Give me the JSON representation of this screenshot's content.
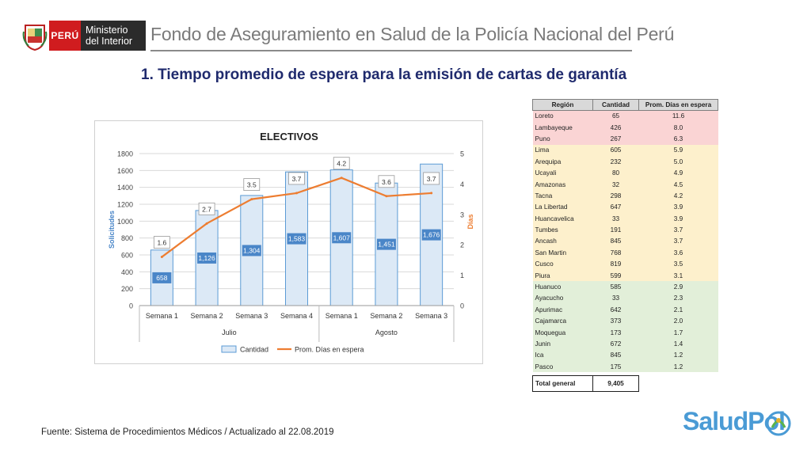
{
  "header": {
    "country": "PERÚ",
    "ministry_line1": "Ministerio",
    "ministry_line2": "del Interior",
    "title": "Fondo de Aseguramiento en Salud de la Policía Nacional del Perú"
  },
  "slide_title": "1. Tiempo promedio de espera para la emisión de cartas de garantía",
  "footer": "Fuente: Sistema de Procedimientos Médicos / Actualizado al 22.08.2019",
  "logo_text": "SaludPol",
  "colors": {
    "bar_fill": "#dce9f6",
    "bar_stroke": "#5b9bd5",
    "bar_label_bg": "#4a86c8",
    "line": "#ed7d31",
    "title_blue": "#1f2a6d",
    "tier_red": "#fad4d4",
    "tier_yellow": "#fdf0cc",
    "tier_green": "#e2efd9"
  },
  "chart_data": {
    "type": "bar",
    "title": "ELECTIVOS",
    "categories": [
      "Semana 1",
      "Semana 2",
      "Semana 3",
      "Semana 4",
      "Semana 1",
      "Semana 2",
      "Semana 3"
    ],
    "groups": [
      {
        "label": "Julio",
        "count": 4
      },
      {
        "label": "Agosto",
        "count": 3
      }
    ],
    "series": [
      {
        "name": "Cantidad",
        "type": "bar",
        "axis": "left",
        "values": [
          658,
          1126,
          1304,
          1583,
          1607,
          1451,
          1676
        ],
        "labels": [
          "658",
          "1,126",
          "1,304",
          "1,583",
          "1,607",
          "1,451",
          "1,676"
        ]
      },
      {
        "name": "Prom. Días en espera",
        "type": "line",
        "axis": "right",
        "values": [
          1.6,
          2.7,
          3.5,
          3.7,
          4.2,
          3.6,
          3.7
        ],
        "labels": [
          "1.6",
          "2.7",
          "3.5",
          "3.7",
          "4.2",
          "3.6",
          "3.7"
        ]
      }
    ],
    "ylabel": "Solicitudes",
    "y2label": "Días",
    "ylim": [
      0,
      1800
    ],
    "y2lim": [
      0,
      5
    ],
    "yticks": [
      "0",
      "200",
      "400",
      "600",
      "800",
      "1000",
      "1200",
      "1400",
      "1600",
      "1800"
    ],
    "y2ticks": [
      "0",
      "1",
      "2",
      "3",
      "4",
      "5"
    ],
    "grid": true,
    "legend": "bottom"
  },
  "table": {
    "headers": [
      "Región",
      "Cantidad",
      "Prom. Días en espera"
    ],
    "rows": [
      {
        "region": "Loreto",
        "cantidad": "65",
        "prom": "11.6",
        "tier": "red"
      },
      {
        "region": "Lambayeque",
        "cantidad": "426",
        "prom": "8.0",
        "tier": "red"
      },
      {
        "region": "Puno",
        "cantidad": "267",
        "prom": "6.3",
        "tier": "red"
      },
      {
        "region": "Lima",
        "cantidad": "605",
        "prom": "5.9",
        "tier": "yellow"
      },
      {
        "region": "Arequipa",
        "cantidad": "232",
        "prom": "5.0",
        "tier": "yellow"
      },
      {
        "region": "Ucayali",
        "cantidad": "80",
        "prom": "4.9",
        "tier": "yellow"
      },
      {
        "region": "Amazonas",
        "cantidad": "32",
        "prom": "4.5",
        "tier": "yellow"
      },
      {
        "region": "Tacna",
        "cantidad": "298",
        "prom": "4.2",
        "tier": "yellow"
      },
      {
        "region": "La Libertad",
        "cantidad": "647",
        "prom": "3.9",
        "tier": "yellow"
      },
      {
        "region": "Huancavelica",
        "cantidad": "33",
        "prom": "3.9",
        "tier": "yellow"
      },
      {
        "region": "Tumbes",
        "cantidad": "191",
        "prom": "3.7",
        "tier": "yellow"
      },
      {
        "region": "Ancash",
        "cantidad": "845",
        "prom": "3.7",
        "tier": "yellow"
      },
      {
        "region": "San Martin",
        "cantidad": "768",
        "prom": "3.6",
        "tier": "yellow"
      },
      {
        "region": "Cusco",
        "cantidad": "819",
        "prom": "3.5",
        "tier": "yellow"
      },
      {
        "region": "Piura",
        "cantidad": "599",
        "prom": "3.1",
        "tier": "yellow"
      },
      {
        "region": "Huanuco",
        "cantidad": "585",
        "prom": "2.9",
        "tier": "green"
      },
      {
        "region": "Ayacucho",
        "cantidad": "33",
        "prom": "2.3",
        "tier": "green"
      },
      {
        "region": "Apurimac",
        "cantidad": "642",
        "prom": "2.1",
        "tier": "green"
      },
      {
        "region": "Cajamarca",
        "cantidad": "373",
        "prom": "2.0",
        "tier": "green"
      },
      {
        "region": "Moquegua",
        "cantidad": "173",
        "prom": "1.7",
        "tier": "green"
      },
      {
        "region": "Junin",
        "cantidad": "672",
        "prom": "1.4",
        "tier": "green"
      },
      {
        "region": "Ica",
        "cantidad": "845",
        "prom": "1.2",
        "tier": "green"
      },
      {
        "region": "Pasco",
        "cantidad": "175",
        "prom": "1.2",
        "tier": "green"
      }
    ],
    "total_label": "Total general",
    "total_value": "9,405"
  }
}
